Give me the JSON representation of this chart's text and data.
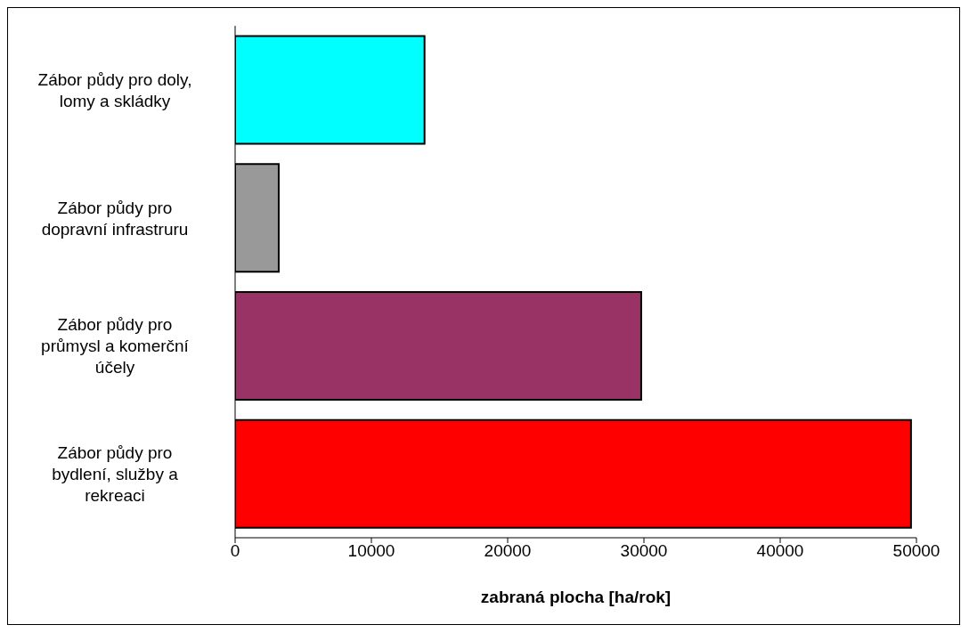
{
  "chart_data": {
    "type": "bar",
    "orientation": "horizontal",
    "xlabel": "zabraná plocha [ha/rok]",
    "categories": [
      "Zábor půdy pro doly, lomy a skládky",
      "Zábor půdy pro dopravní infrastruru",
      "Zábor půdy pro průmysl a komerční účely",
      "Zábor půdy pro bydlení, služby a rekreaci"
    ],
    "values": [
      13900,
      3200,
      29800,
      49600
    ],
    "colors": [
      "#00ffff",
      "#999999",
      "#993366",
      "#ff0000"
    ],
    "xlim": [
      0,
      50000
    ],
    "xticks": [
      0,
      10000,
      20000,
      30000,
      40000,
      50000
    ],
    "grid": false
  }
}
